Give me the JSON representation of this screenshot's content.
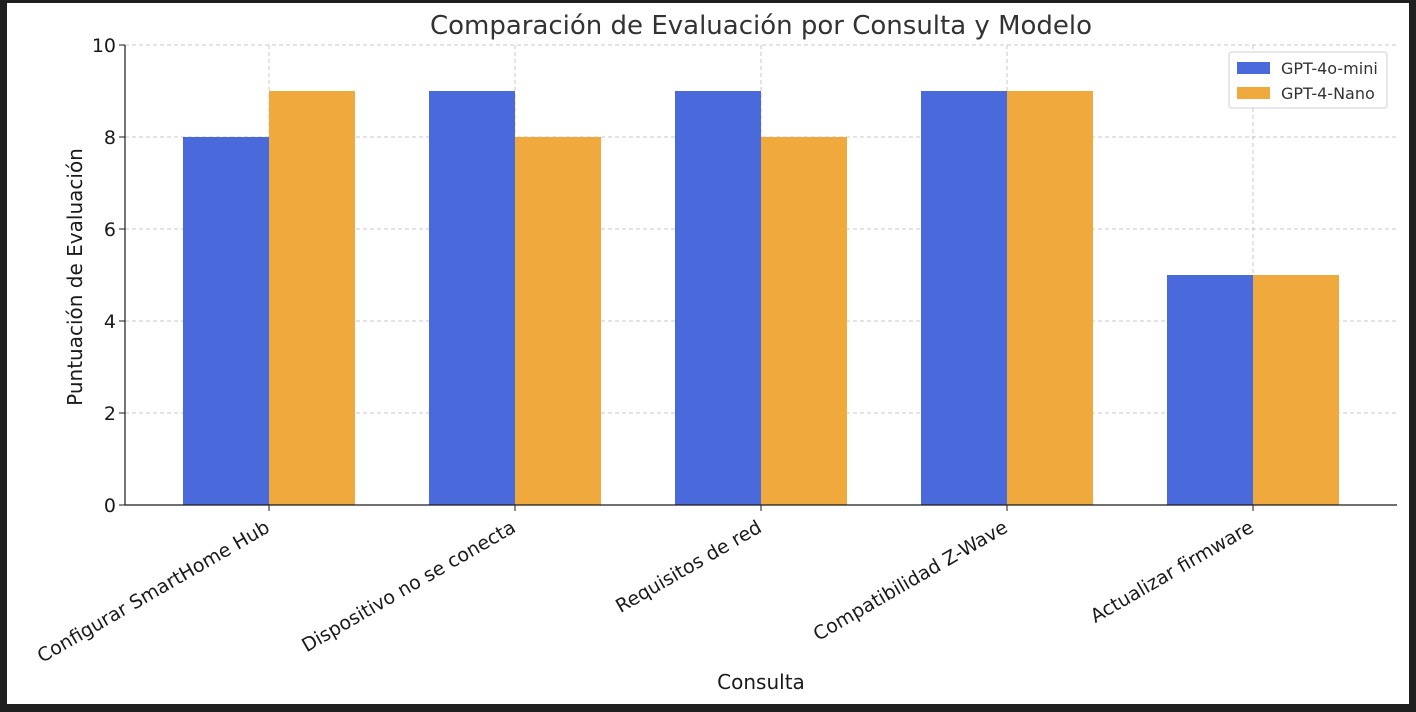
{
  "chart_data": {
    "type": "bar",
    "title": "Comparación de Evaluación por Consulta y Modelo",
    "xlabel": "Consulta",
    "ylabel": "Puntuación de Evaluación",
    "categories": [
      "Configurar SmartHome Hub",
      "Dispositivo no se conecta",
      "Requisitos de red",
      "Compatibilidad Z-Wave",
      "Actualizar firmware"
    ],
    "series": [
      {
        "name": "GPT-4o-mini",
        "color": "#4a6adb",
        "values": [
          8,
          9,
          9,
          9,
          5
        ]
      },
      {
        "name": "GPT-4-Nano",
        "color": "#f0a93c",
        "values": [
          9,
          8,
          8,
          9,
          5
        ]
      }
    ],
    "ylim": [
      0,
      10
    ],
    "yticks": [
      0,
      2,
      4,
      6,
      8,
      10
    ],
    "grid": true,
    "legend_position": "top-right"
  }
}
